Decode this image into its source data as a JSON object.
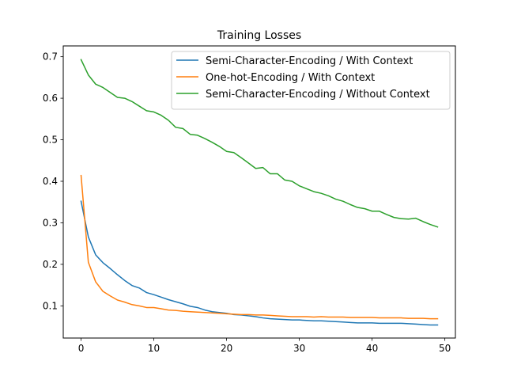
{
  "chart_data": {
    "type": "line",
    "title": "Training Losses",
    "xlabel": "",
    "ylabel": "",
    "xlim": [
      -2.45,
      51.45
    ],
    "ylim": [
      0.0225,
      0.726
    ],
    "xticks": [
      0,
      10,
      20,
      30,
      40,
      50
    ],
    "yticks": [
      0.1,
      0.2,
      0.3,
      0.4,
      0.5,
      0.6,
      0.7
    ],
    "grid": false,
    "legend_position": "top-right",
    "x": [
      0,
      1,
      2,
      3,
      4,
      5,
      6,
      7,
      8,
      9,
      10,
      11,
      12,
      13,
      14,
      15,
      16,
      17,
      18,
      19,
      20,
      21,
      22,
      23,
      24,
      25,
      26,
      27,
      28,
      29,
      30,
      31,
      32,
      33,
      34,
      35,
      36,
      37,
      38,
      39,
      40,
      41,
      42,
      43,
      44,
      45,
      46,
      47,
      48,
      49
    ],
    "series": [
      {
        "name": "Semi-Character-Encoding / With Context",
        "color": "#1f77b4",
        "values": [
          0.352,
          0.266,
          0.223,
          0.204,
          0.19,
          0.175,
          0.161,
          0.149,
          0.143,
          0.132,
          0.127,
          0.121,
          0.115,
          0.11,
          0.105,
          0.099,
          0.096,
          0.09,
          0.086,
          0.084,
          0.082,
          0.079,
          0.078,
          0.076,
          0.074,
          0.071,
          0.069,
          0.068,
          0.067,
          0.066,
          0.066,
          0.065,
          0.064,
          0.064,
          0.063,
          0.062,
          0.061,
          0.06,
          0.059,
          0.059,
          0.059,
          0.058,
          0.058,
          0.058,
          0.058,
          0.057,
          0.056,
          0.055,
          0.054,
          0.054
        ]
      },
      {
        "name": "One-hot-Encoding / With Context",
        "color": "#ff7f0e",
        "values": [
          0.414,
          0.205,
          0.158,
          0.135,
          0.124,
          0.114,
          0.109,
          0.103,
          0.1,
          0.096,
          0.096,
          0.093,
          0.09,
          0.089,
          0.087,
          0.086,
          0.085,
          0.084,
          0.083,
          0.082,
          0.081,
          0.08,
          0.079,
          0.079,
          0.078,
          0.078,
          0.077,
          0.076,
          0.075,
          0.074,
          0.074,
          0.074,
          0.073,
          0.074,
          0.073,
          0.073,
          0.073,
          0.072,
          0.072,
          0.072,
          0.072,
          0.071,
          0.071,
          0.071,
          0.071,
          0.07,
          0.07,
          0.07,
          0.069,
          0.069
        ]
      },
      {
        "name": "Semi-Character-Encoding / Without Context",
        "color": "#2ca02c",
        "values": [
          0.693,
          0.656,
          0.634,
          0.626,
          0.614,
          0.602,
          0.6,
          0.592,
          0.581,
          0.57,
          0.567,
          0.559,
          0.547,
          0.53,
          0.527,
          0.513,
          0.511,
          0.503,
          0.494,
          0.484,
          0.472,
          0.469,
          0.457,
          0.444,
          0.431,
          0.433,
          0.418,
          0.418,
          0.403,
          0.4,
          0.389,
          0.382,
          0.375,
          0.371,
          0.365,
          0.357,
          0.352,
          0.344,
          0.337,
          0.334,
          0.328,
          0.328,
          0.32,
          0.313,
          0.31,
          0.309,
          0.311,
          0.303,
          0.296,
          0.29
        ]
      }
    ]
  }
}
